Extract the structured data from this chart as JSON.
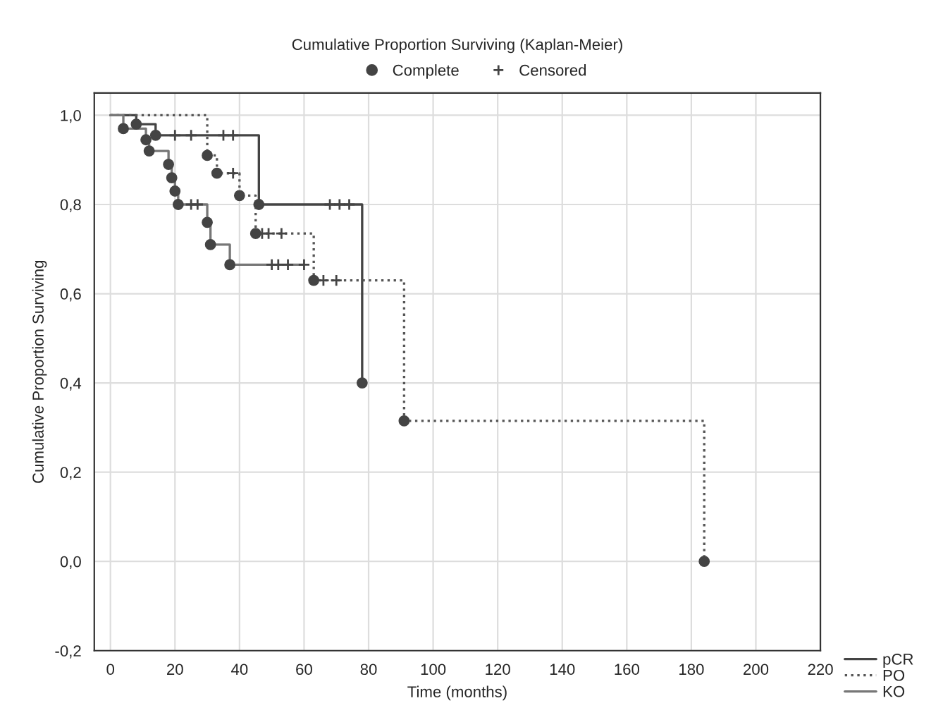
{
  "chart_data": {
    "type": "step",
    "title": "Cumulative Proportion Surviving (Kaplan-Meier)",
    "xlabel": "Time (months)",
    "ylabel": "Cumulative Proportion Surviving",
    "series": [
      {
        "name": "pCR",
        "color": "#444444",
        "line_style": "solid",
        "x": [
          0,
          8,
          14,
          46,
          78
        ],
        "values": [
          1.0,
          0.98,
          0.955,
          0.8,
          0.4
        ]
      },
      {
        "name": "PO",
        "color": "#555555",
        "line_style": "dotted",
        "x": [
          0,
          30,
          33,
          40,
          45,
          63,
          91,
          184
        ],
        "values": [
          1.0,
          0.91,
          0.87,
          0.82,
          0.735,
          0.63,
          0.315,
          0.0
        ]
      },
      {
        "name": "KO",
        "color": "#777777",
        "line_style": "solid",
        "x": [
          0,
          4,
          11,
          12,
          18,
          19,
          20,
          21,
          30,
          31,
          37,
          60
        ],
        "values": [
          1.0,
          0.97,
          0.945,
          0.92,
          0.89,
          0.86,
          0.83,
          0.8,
          0.76,
          0.71,
          0.665,
          0.665
        ]
      },
      {
        "name": "Complete",
        "type": "scatter",
        "marker": "circle",
        "color": "#444444",
        "x": [
          4,
          11,
          12,
          18,
          19,
          20,
          21,
          30,
          31,
          37,
          8,
          14,
          46,
          78,
          30,
          33,
          40,
          45,
          63,
          91,
          184
        ],
        "values": [
          0.97,
          0.945,
          0.92,
          0.89,
          0.86,
          0.83,
          0.8,
          0.76,
          0.71,
          0.665,
          0.98,
          0.955,
          0.8,
          0.4,
          0.91,
          0.87,
          0.82,
          0.735,
          0.63,
          0.315,
          0.0
        ]
      },
      {
        "name": "Censored",
        "type": "scatter",
        "marker": "cross",
        "color": "#444444",
        "x": [
          25,
          27,
          50,
          52,
          55,
          60,
          20,
          25,
          35,
          38,
          68,
          71,
          74,
          38,
          47,
          49,
          53,
          66,
          70
        ],
        "values": [
          0.8,
          0.8,
          0.665,
          0.665,
          0.665,
          0.665,
          0.955,
          0.955,
          0.955,
          0.955,
          0.8,
          0.8,
          0.8,
          0.87,
          0.735,
          0.735,
          0.735,
          0.63,
          0.63
        ]
      }
    ],
    "xlim": [
      -5,
      220
    ],
    "xticks": [
      0,
      20,
      40,
      60,
      80,
      100,
      120,
      140,
      160,
      180,
      200,
      220
    ],
    "ylim": [
      -0.2,
      1.05
    ],
    "yticks": [
      {
        "value": -0.2,
        "label": "-0,2"
      },
      {
        "value": 0.0,
        "label": "0,0"
      },
      {
        "value": 0.2,
        "label": "0,2"
      },
      {
        "value": 0.4,
        "label": "0,4"
      },
      {
        "value": 0.6,
        "label": "0,6"
      },
      {
        "value": 0.8,
        "label": "0,8"
      },
      {
        "value": 1.0,
        "label": "1,0"
      }
    ],
    "grid": true,
    "legend": "bottom right"
  }
}
